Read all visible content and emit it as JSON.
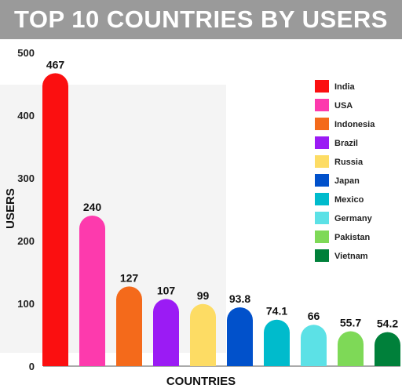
{
  "chart_data": {
    "type": "bar",
    "title": "TOP 10 COUNTRIES BY USERS",
    "xlabel": "COUNTRIES",
    "ylabel": "USERS",
    "ylim": [
      0,
      500
    ],
    "yticks": [
      "0",
      "100",
      "200",
      "300",
      "400",
      "500"
    ],
    "categories": [
      "India",
      "USA",
      "Indonesia",
      "Brazil",
      "Russia",
      "Japan",
      "Mexico",
      "Germany",
      "Pakistan",
      "Vietnam"
    ],
    "values": [
      467,
      240,
      127,
      107,
      99,
      93.8,
      74.1,
      66,
      55.7,
      54.2
    ],
    "labels": [
      "467",
      "240",
      "127",
      "107",
      "99",
      "93.8",
      "74.1",
      "66",
      "55.7",
      "54.2"
    ],
    "colors": [
      "#fb0f10",
      "#fd3aad",
      "#f46a1b",
      "#9b1bf4",
      "#fddc64",
      "#0151cb",
      "#00bbcc",
      "#5ce1e6",
      "#7ed957",
      "#00803a"
    ],
    "legend": "top-right",
    "grid": false
  }
}
